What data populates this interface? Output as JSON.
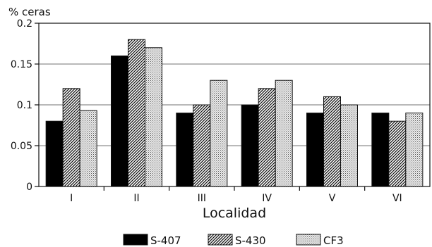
{
  "chart_data": {
    "type": "bar",
    "ylabel": "% ceras",
    "xlabel": "Localidad",
    "categories": [
      "I",
      "II",
      "III",
      "IV",
      "V",
      "VI"
    ],
    "ylim": [
      0,
      0.2
    ],
    "yticks": [
      0,
      0.05,
      0.1,
      0.15,
      0.2
    ],
    "ytick_labels": [
      "0",
      "0.05",
      "0.1",
      "0.15",
      "0.2"
    ],
    "grid": "horizontal",
    "legend_position": "bottom",
    "series": [
      {
        "name": "S-407",
        "values": [
          0.08,
          0.16,
          0.09,
          0.1,
          0.09,
          0.09
        ],
        "fill": "solid",
        "color": "#000000"
      },
      {
        "name": "S-430",
        "values": [
          0.12,
          0.18,
          0.1,
          0.12,
          0.11,
          0.08
        ],
        "fill": "diagonal-hatch",
        "color": "#222222"
      },
      {
        "name": "CF3",
        "values": [
          0.093,
          0.17,
          0.13,
          0.13,
          0.1,
          0.09
        ],
        "fill": "dots",
        "color": "#9a9a9a"
      }
    ]
  }
}
